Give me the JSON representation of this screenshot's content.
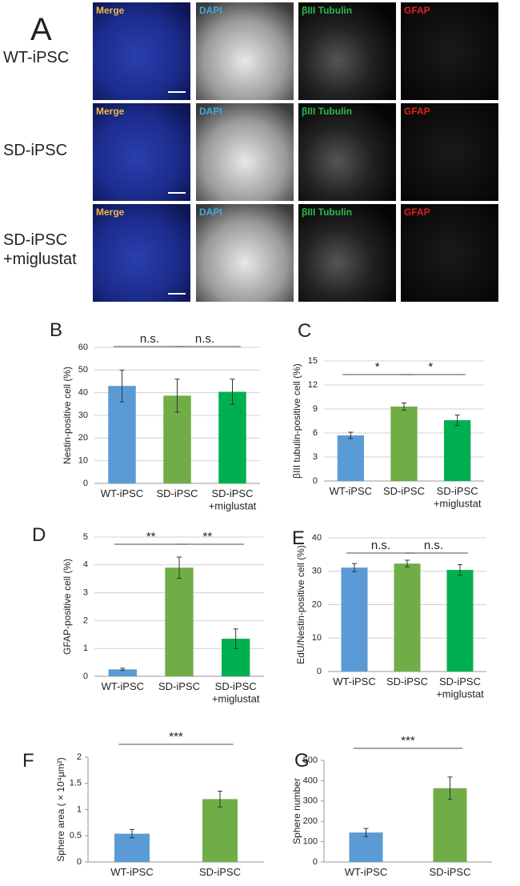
{
  "panel_a": {
    "letter": "A",
    "rows": [
      "WT-iPSC",
      "SD-iPSC",
      "SD-iPSC\n+miglustat"
    ],
    "channels": [
      {
        "name": "Merge",
        "color": "#f4b942"
      },
      {
        "name": "DAPI",
        "color": "#3fa9e0"
      },
      {
        "name": "βIII Tubulin",
        "color": "#2eb84b"
      },
      {
        "name": "GFAP",
        "color": "#e0201b"
      }
    ]
  },
  "chart_data": [
    {
      "type": "bar",
      "panel": "B",
      "y_label": "Nestin-positive cell (%)",
      "categories": [
        "WT-iPSC",
        "SD-iPSC",
        "SD-iPSC\n+miglustat"
      ],
      "colors": [
        "#5b9bd5",
        "#70ad47",
        "#00b050"
      ],
      "values": [
        43,
        38.7,
        40.4
      ],
      "errors": [
        7,
        7.3,
        5.6
      ],
      "ylim": [
        0,
        60
      ],
      "yticks": [
        0,
        10,
        20,
        30,
        40,
        50,
        60
      ],
      "grid": true,
      "significance": [
        {
          "between": [
            0,
            1
          ],
          "label": "n.s."
        },
        {
          "between": [
            1,
            2
          ],
          "label": "n.s."
        }
      ]
    },
    {
      "type": "bar",
      "panel": "C",
      "y_label": "βIII tubulin-positive cell (%)",
      "categories": [
        "WT-iPSC",
        "SD-iPSC",
        "SD-iPSC\n+miglustat"
      ],
      "colors": [
        "#5b9bd5",
        "#70ad47",
        "#00b050"
      ],
      "values": [
        5.7,
        9.3,
        7.6
      ],
      "errors": [
        0.4,
        0.45,
        0.65
      ],
      "ylim": [
        0,
        15
      ],
      "yticks": [
        0,
        3,
        6,
        9,
        12,
        15
      ],
      "grid": true,
      "significance": [
        {
          "between": [
            0,
            1
          ],
          "label": "*"
        },
        {
          "between": [
            1,
            2
          ],
          "label": "*"
        }
      ]
    },
    {
      "type": "bar",
      "panel": "D",
      "y_label": "GFAP-positive cell (%)",
      "categories": [
        "WT-iPSC",
        "SD-iPSC",
        "SD-iPSC\n+miglustat"
      ],
      "colors": [
        "#5b9bd5",
        "#70ad47",
        "#00b050"
      ],
      "values": [
        0.25,
        3.9,
        1.35
      ],
      "errors": [
        0.04,
        0.38,
        0.35
      ],
      "ylim": [
        0,
        5
      ],
      "yticks": [
        0,
        1,
        2,
        3,
        4,
        5
      ],
      "grid": true,
      "significance": [
        {
          "between": [
            0,
            1
          ],
          "label": "**"
        },
        {
          "between": [
            1,
            2
          ],
          "label": "**"
        }
      ]
    },
    {
      "type": "bar",
      "panel": "E",
      "y_label": "EdU/Nestin-positive cell (%)",
      "categories": [
        "WT-iPSC",
        "SD-iPSC",
        "SD-iPSC\n+miglustat"
      ],
      "colors": [
        "#5b9bd5",
        "#70ad47",
        "#00b050"
      ],
      "values": [
        31.1,
        32.3,
        30.4
      ],
      "errors": [
        1.2,
        1.0,
        1.6
      ],
      "ylim": [
        0,
        40
      ],
      "yticks": [
        0,
        10,
        20,
        30,
        40
      ],
      "grid": true,
      "significance": [
        {
          "between": [
            0,
            1
          ],
          "label": "n.s."
        },
        {
          "between": [
            1,
            2
          ],
          "label": "n.s."
        }
      ]
    },
    {
      "type": "bar",
      "panel": "F",
      "y_label": "Sphere area ( × 10⁴μm²)",
      "categories": [
        "WT-iPSC",
        "SD-iPSC"
      ],
      "colors": [
        "#5b9bd5",
        "#70ad47"
      ],
      "values": [
        0.54,
        1.2
      ],
      "errors": [
        0.08,
        0.15
      ],
      "ylim": [
        0,
        2
      ],
      "yticks": [
        0,
        0.5,
        1,
        1.5,
        2
      ],
      "grid": false,
      "significance": [
        {
          "between": [
            0,
            1
          ],
          "label": "***"
        }
      ]
    },
    {
      "type": "bar",
      "panel": "G",
      "y_label": "Sphere number",
      "categories": [
        "WT-iPSC",
        "SD-iPSC"
      ],
      "colors": [
        "#5b9bd5",
        "#70ad47"
      ],
      "values": [
        145,
        363
      ],
      "errors": [
        20,
        55
      ],
      "ylim": [
        0,
        500
      ],
      "yticks": [
        0,
        100,
        200,
        300,
        400,
        500
      ],
      "grid": false,
      "significance": [
        {
          "between": [
            0,
            1
          ],
          "label": "***"
        }
      ]
    }
  ]
}
